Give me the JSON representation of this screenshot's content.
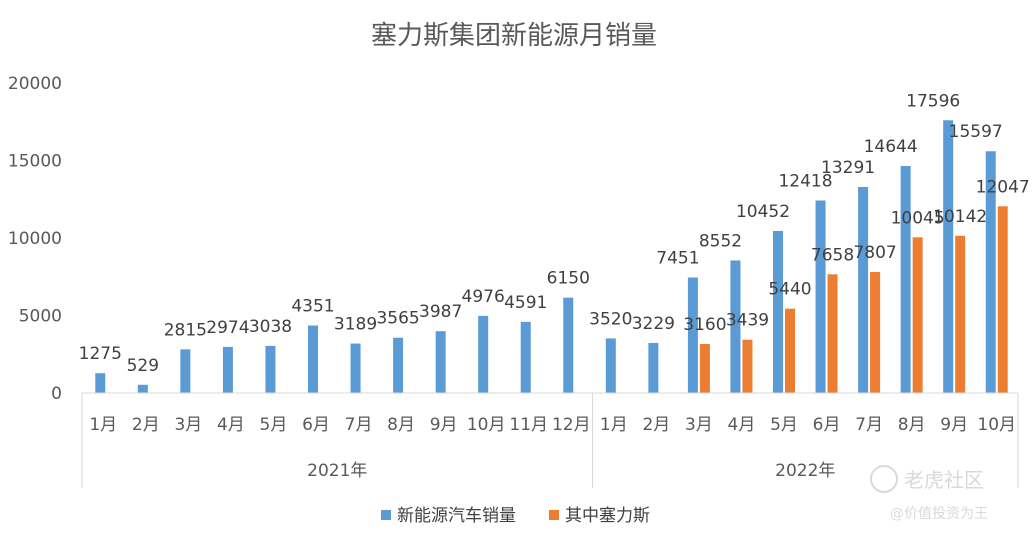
{
  "chart_data": {
    "type": "bar",
    "title": "塞力斯集团新能源月销量",
    "xlabel": "",
    "ylabel": "",
    "ylim": [
      0,
      20000
    ],
    "y_ticks": [
      "0",
      "5000",
      "10000",
      "15000",
      "20000"
    ],
    "grid": false,
    "legend_position": "bottom",
    "groups": [
      {
        "label": "2021年",
        "months": [
          "1月",
          "2月",
          "3月",
          "4月",
          "5月",
          "6月",
          "7月",
          "8月",
          "9月",
          "10月",
          "11月",
          "12月"
        ]
      },
      {
        "label": "2022年",
        "months": [
          "1月",
          "2月",
          "3月",
          "4月",
          "5月",
          "6月",
          "7月",
          "8月",
          "9月",
          "10月"
        ]
      }
    ],
    "categories": [
      "2021年 1月",
      "2021年 2月",
      "2021年 3月",
      "2021年 4月",
      "2021年 5月",
      "2021年 6月",
      "2021年 7月",
      "2021年 8月",
      "2021年 9月",
      "2021年 10月",
      "2021年 11月",
      "2021年 12月",
      "2022年 1月",
      "2022年 2月",
      "2022年 3月",
      "2022年 4月",
      "2022年 5月",
      "2022年 6月",
      "2022年 7月",
      "2022年 8月",
      "2022年 9月",
      "2022年 10月"
    ],
    "series": [
      {
        "name": "新能源汽车销量",
        "color": "#5b9bd5",
        "values": [
          1275,
          529,
          2815,
          2974,
          3038,
          4351,
          3189,
          3565,
          3987,
          4976,
          4591,
          6150,
          3520,
          3229,
          7451,
          8552,
          10452,
          12418,
          13291,
          14644,
          17596,
          15597
        ]
      },
      {
        "name": "其中塞力斯",
        "color": "#ed7d31",
        "values": [
          null,
          null,
          null,
          null,
          null,
          null,
          null,
          null,
          null,
          null,
          null,
          null,
          null,
          null,
          3160,
          3439,
          5440,
          7658,
          7807,
          10045,
          10142,
          12047
        ]
      }
    ]
  },
  "watermark": {
    "brand": "老虎社区",
    "author": "@价值投资为王"
  }
}
